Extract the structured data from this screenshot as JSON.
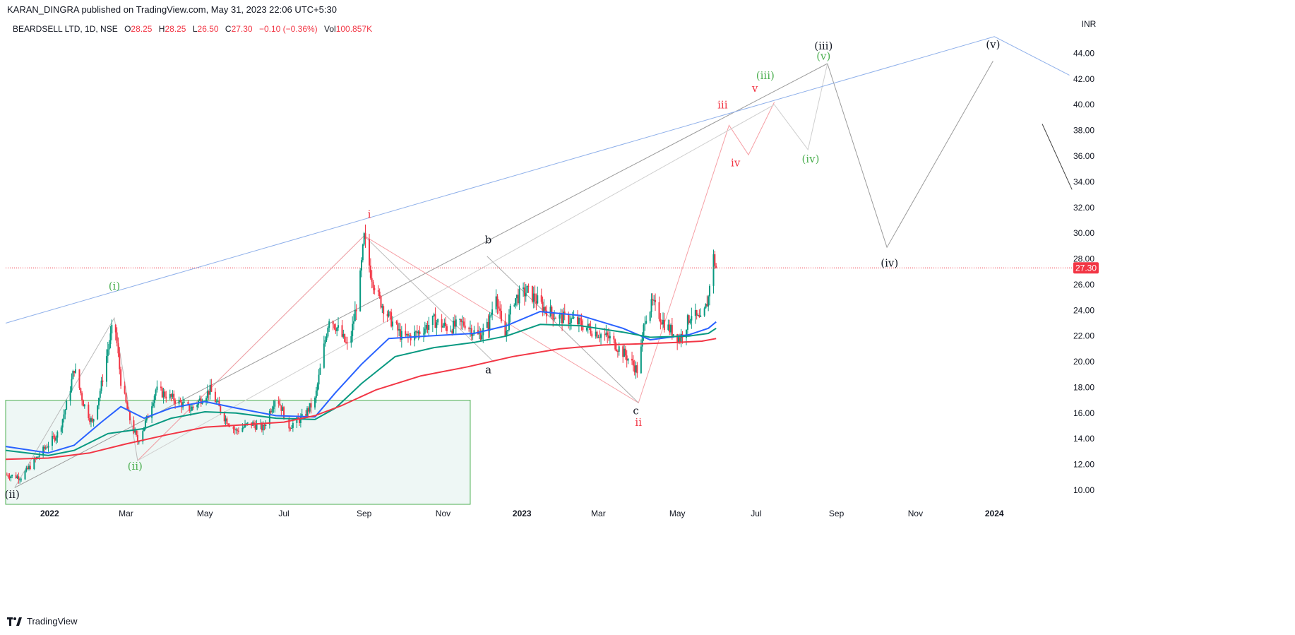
{
  "header": {
    "published": "KARAN_DINGRA published on TradingView.com, May 31, 2023 22:06 UTC+5:30"
  },
  "legend": {
    "symbol": "BEARDSELL LTD, 1D, NSE",
    "open_label": "O",
    "open": "28.25",
    "high_label": "H",
    "high": "28.25",
    "low_label": "L",
    "low": "26.50",
    "close_label": "C",
    "close": "27.30",
    "change": "−0.10 (−0.36%)",
    "vol_label": "Vol",
    "vol": "100.857K"
  },
  "footer": {
    "brand": "TradingView"
  },
  "colors": {
    "up": "#089981",
    "down": "#f23645",
    "ma_fast": "#2962ff",
    "ma_mid": "#089981",
    "ma_slow": "#f23645",
    "trendline": "#8fb0ea",
    "box_fill": "#e3f2ef",
    "box_border": "#4caf50",
    "wave_green": "#4caf50",
    "wave_red": "#f23645",
    "wave_black": "#131722"
  },
  "chart_data": {
    "type": "line",
    "title": "",
    "currency": "INR",
    "y_ticks": [
      "10.00",
      "12.00",
      "14.00",
      "16.00",
      "18.00",
      "20.00",
      "22.00",
      "24.00",
      "26.00",
      "28.00",
      "30.00",
      "32.00",
      "34.00",
      "36.00",
      "38.00",
      "40.00",
      "42.00",
      "44.00"
    ],
    "ylim": [
      8.9,
      45.4
    ],
    "x_ticks": [
      {
        "label": "2022",
        "date": "2022-01-01",
        "bold": true
      },
      {
        "label": "Mar",
        "date": "2022-03-01",
        "bold": false
      },
      {
        "label": "May",
        "date": "2022-05-01",
        "bold": false
      },
      {
        "label": "Jul",
        "date": "2022-07-01",
        "bold": false
      },
      {
        "label": "Sep",
        "date": "2022-09-01",
        "bold": false
      },
      {
        "label": "Nov",
        "date": "2022-11-01",
        "bold": false
      },
      {
        "label": "2023",
        "date": "2023-01-01",
        "bold": true
      },
      {
        "label": "Mar",
        "date": "2023-03-01",
        "bold": false
      },
      {
        "label": "May",
        "date": "2023-05-01",
        "bold": false
      },
      {
        "label": "Jul",
        "date": "2023-07-01",
        "bold": false
      },
      {
        "label": "Sep",
        "date": "2023-09-01",
        "bold": false
      },
      {
        "label": "Nov",
        "date": "2023-11-01",
        "bold": false
      },
      {
        "label": "2024",
        "date": "2024-01-01",
        "bold": true
      }
    ],
    "xlim": [
      "2021-11-28",
      "2024-03-02"
    ],
    "last_price": {
      "label": "27.30",
      "value": 27.3
    },
    "price_path": [
      [
        "2021-11-28",
        11.2
      ],
      [
        "2021-12-10",
        11.0
      ],
      [
        "2021-12-22",
        12.5
      ],
      [
        "2021-12-31",
        13.6
      ],
      [
        "2022-01-08",
        14.5
      ],
      [
        "2022-01-15",
        17.0
      ],
      [
        "2022-01-20",
        19.5
      ],
      [
        "2022-01-27",
        16.8
      ],
      [
        "2022-02-03",
        15.2
      ],
      [
        "2022-02-10",
        18.2
      ],
      [
        "2022-02-15",
        21.0
      ],
      [
        "2022-02-20",
        23.3
      ],
      [
        "2022-02-25",
        18.5
      ],
      [
        "2022-03-03",
        15.8
      ],
      [
        "2022-03-10",
        13.8
      ],
      [
        "2022-03-17",
        15.5
      ],
      [
        "2022-03-24",
        17.8
      ],
      [
        "2022-04-05",
        17.2
      ],
      [
        "2022-04-20",
        16.3
      ],
      [
        "2022-05-05",
        17.8
      ],
      [
        "2022-05-15",
        15.8
      ],
      [
        "2022-05-25",
        14.6
      ],
      [
        "2022-06-05",
        15.2
      ],
      [
        "2022-06-15",
        14.8
      ],
      [
        "2022-06-25",
        17.4
      ],
      [
        "2022-07-05",
        15.0
      ],
      [
        "2022-07-15",
        15.6
      ],
      [
        "2022-07-25",
        17.0
      ],
      [
        "2022-08-05",
        23.5
      ],
      [
        "2022-08-12",
        22.5
      ],
      [
        "2022-08-20",
        21.0
      ],
      [
        "2022-08-28",
        25.5
      ],
      [
        "2022-09-01",
        29.6
      ],
      [
        "2022-09-06",
        27.0
      ],
      [
        "2022-09-12",
        25.0
      ],
      [
        "2022-09-20",
        23.5
      ],
      [
        "2022-10-01",
        21.8
      ],
      [
        "2022-10-12",
        22.2
      ],
      [
        "2022-10-25",
        23.2
      ],
      [
        "2022-11-05",
        22.6
      ],
      [
        "2022-11-18",
        23.0
      ],
      [
        "2022-11-28",
        22.0
      ],
      [
        "2022-12-06",
        22.8
      ],
      [
        "2022-12-12",
        25.5
      ],
      [
        "2022-12-18",
        21.5
      ],
      [
        "2022-12-25",
        24.8
      ],
      [
        "2023-01-05",
        25.5
      ],
      [
        "2023-01-18",
        24.2
      ],
      [
        "2023-01-28",
        23.5
      ],
      [
        "2023-02-10",
        23.2
      ],
      [
        "2023-02-25",
        22.4
      ],
      [
        "2023-03-10",
        21.8
      ],
      [
        "2023-03-22",
        20.5
      ],
      [
        "2023-04-01",
        19.2
      ],
      [
        "2023-04-06",
        23.5
      ],
      [
        "2023-04-12",
        24.5
      ],
      [
        "2023-04-22",
        22.8
      ],
      [
        "2023-05-03",
        21.8
      ],
      [
        "2023-05-12",
        23.8
      ],
      [
        "2023-05-20",
        23.0
      ],
      [
        "2023-05-25",
        25.0
      ],
      [
        "2023-05-28",
        28.5
      ],
      [
        "2023-05-31",
        27.3
      ]
    ],
    "series": [
      {
        "name": "",
        "color": "#2962ff",
        "points": [
          [
            "2021-11-28",
            13.4
          ],
          [
            "2021-12-31",
            12.9
          ],
          [
            "2022-01-20",
            13.5
          ],
          [
            "2022-02-10",
            15.3
          ],
          [
            "2022-02-25",
            16.5
          ],
          [
            "2022-03-15",
            15.6
          ],
          [
            "2022-04-05",
            16.4
          ],
          [
            "2022-05-01",
            16.9
          ],
          [
            "2022-05-25",
            16.4
          ],
          [
            "2022-06-25",
            15.8
          ],
          [
            "2022-07-25",
            15.7
          ],
          [
            "2022-08-10",
            17.6
          ],
          [
            "2022-08-30",
            19.8
          ],
          [
            "2022-09-20",
            21.8
          ],
          [
            "2022-10-20",
            22.0
          ],
          [
            "2022-11-25",
            22.2
          ],
          [
            "2022-12-20",
            22.8
          ],
          [
            "2023-01-15",
            23.9
          ],
          [
            "2023-02-15",
            23.6
          ],
          [
            "2023-03-20",
            22.6
          ],
          [
            "2023-04-10",
            21.7
          ],
          [
            "2023-05-10",
            22.1
          ],
          [
            "2023-05-25",
            22.6
          ],
          [
            "2023-05-31",
            23.1
          ]
        ]
      },
      {
        "name": "",
        "color": "#089981",
        "points": [
          [
            "2021-11-28",
            13.1
          ],
          [
            "2021-12-31",
            12.7
          ],
          [
            "2022-01-20",
            13.1
          ],
          [
            "2022-02-15",
            14.4
          ],
          [
            "2022-03-15",
            14.8
          ],
          [
            "2022-04-05",
            15.6
          ],
          [
            "2022-05-01",
            16.1
          ],
          [
            "2022-05-25",
            16.0
          ],
          [
            "2022-06-25",
            15.6
          ],
          [
            "2022-07-25",
            15.5
          ],
          [
            "2022-08-10",
            16.4
          ],
          [
            "2022-08-30",
            18.3
          ],
          [
            "2022-09-25",
            20.4
          ],
          [
            "2022-10-25",
            21.1
          ],
          [
            "2022-11-25",
            21.5
          ],
          [
            "2022-12-20",
            22.0
          ],
          [
            "2023-01-15",
            22.9
          ],
          [
            "2023-02-15",
            22.8
          ],
          [
            "2023-03-20",
            22.3
          ],
          [
            "2023-04-10",
            21.9
          ],
          [
            "2023-05-10",
            22.0
          ],
          [
            "2023-05-25",
            22.2
          ],
          [
            "2023-05-31",
            22.6
          ]
        ]
      },
      {
        "name": "",
        "color": "#f23645",
        "points": [
          [
            "2021-11-28",
            12.4
          ],
          [
            "2021-12-31",
            12.5
          ],
          [
            "2022-02-01",
            12.9
          ],
          [
            "2022-03-01",
            13.6
          ],
          [
            "2022-04-01",
            14.3
          ],
          [
            "2022-05-01",
            14.9
          ],
          [
            "2022-06-01",
            15.1
          ],
          [
            "2022-07-01",
            15.3
          ],
          [
            "2022-07-25",
            15.8
          ],
          [
            "2022-08-15",
            16.6
          ],
          [
            "2022-09-10",
            17.8
          ],
          [
            "2022-10-15",
            18.9
          ],
          [
            "2022-11-20",
            19.6
          ],
          [
            "2022-12-25",
            20.4
          ],
          [
            "2023-01-30",
            21.0
          ],
          [
            "2023-03-05",
            21.3
          ],
          [
            "2023-04-05",
            21.4
          ],
          [
            "2023-05-01",
            21.5
          ],
          [
            "2023-05-20",
            21.6
          ],
          [
            "2023-05-31",
            21.8
          ]
        ]
      }
    ],
    "wave_lines": [
      {
        "color": "#bbbbbb",
        "width": 1,
        "points": [
          [
            "2021-12-05",
            10.2
          ],
          [
            "2022-02-20",
            23.4
          ],
          [
            "2022-03-10",
            12.3
          ],
          [
            "2022-09-01",
            29.8
          ],
          [
            "2022-12-10",
            20.0
          ]
        ]
      },
      {
        "color": "#f6a0a6",
        "width": 1,
        "points": [
          [
            "2022-03-10",
            12.3
          ],
          [
            "2022-09-01",
            29.8
          ],
          [
            "2023-04-01",
            16.8
          ],
          [
            "2023-06-10",
            38.4
          ],
          [
            "2023-06-25",
            36.1
          ],
          [
            "2023-07-15",
            40.2
          ]
        ]
      },
      {
        "color": "#aaaaaa",
        "width": 1,
        "points": [
          [
            "2022-12-05",
            28.2
          ],
          [
            "2023-04-01",
            16.8
          ]
        ]
      },
      {
        "color": "#9b9b9b",
        "width": 1,
        "points": [
          [
            "2021-12-05",
            10.2
          ],
          [
            "2023-08-25",
            43.2
          ]
        ]
      },
      {
        "color": "#cfcfcf",
        "width": 1,
        "points": [
          [
            "2022-03-10",
            12.3
          ],
          [
            "2023-07-15",
            40.0
          ],
          [
            "2023-08-10",
            36.5
          ],
          [
            "2023-08-25",
            43.2
          ]
        ]
      },
      {
        "color": "#9b9b9b",
        "width": 1,
        "points": [
          [
            "2023-08-25",
            43.2
          ],
          [
            "2023-10-10",
            28.9
          ],
          [
            "2023-12-31",
            43.4
          ]
        ]
      },
      {
        "color": "#8fb0ea",
        "width": 1,
        "points": [
          [
            "2021-11-28",
            23.0
          ],
          [
            "2024-01-01",
            45.3
          ],
          [
            "2024-02-28",
            42.3
          ]
        ]
      },
      {
        "color": "#444444",
        "width": 1,
        "points": [
          [
            "2024-02-07",
            38.5
          ],
          [
            "2024-03-01",
            33.4
          ]
        ]
      }
    ],
    "annotations": [
      {
        "text": "(ii)",
        "date": "2021-12-03",
        "price": 9.4,
        "color": "#131722"
      },
      {
        "text": "(i)",
        "date": "2022-02-20",
        "price": 25.6,
        "color": "#4caf50"
      },
      {
        "text": "(ii)",
        "date": "2022-03-08",
        "price": 11.6,
        "color": "#4caf50"
      },
      {
        "text": "i",
        "date": "2022-09-05",
        "price": 31.2,
        "color": "#f23645"
      },
      {
        "text": "b",
        "date": "2022-12-06",
        "price": 29.2,
        "color": "#131722"
      },
      {
        "text": "a",
        "date": "2022-12-06",
        "price": 19.1,
        "color": "#131722"
      },
      {
        "text": "c",
        "date": "2023-03-30",
        "price": 15.9,
        "color": "#131722"
      },
      {
        "text": "ii",
        "date": "2023-04-01",
        "price": 15.0,
        "color": "#f23645"
      },
      {
        "text": "iii",
        "date": "2023-06-05",
        "price": 39.7,
        "color": "#f23645"
      },
      {
        "text": "iv",
        "date": "2023-06-15",
        "price": 35.2,
        "color": "#f23645"
      },
      {
        "text": "v",
        "date": "2023-06-30",
        "price": 41.0,
        "color": "#f23645"
      },
      {
        "text": "(iii)",
        "date": "2023-07-08",
        "price": 42.0,
        "color": "#4caf50"
      },
      {
        "text": "(iv)",
        "date": "2023-08-12",
        "price": 35.5,
        "color": "#4caf50"
      },
      {
        "text": "(v)",
        "date": "2023-08-22",
        "price": 43.5,
        "color": "#4caf50"
      },
      {
        "text": "(iii)",
        "date": "2023-08-22",
        "price": 44.3,
        "color": "#131722"
      },
      {
        "text": "(iv)",
        "date": "2023-10-12",
        "price": 27.4,
        "color": "#131722"
      },
      {
        "text": "(v)",
        "date": "2023-12-31",
        "price": 44.4,
        "color": "#131722"
      }
    ],
    "box": {
      "start": "2021-11-28",
      "end": "2022-11-22",
      "top": 17.0,
      "bottom": 8.9
    }
  }
}
